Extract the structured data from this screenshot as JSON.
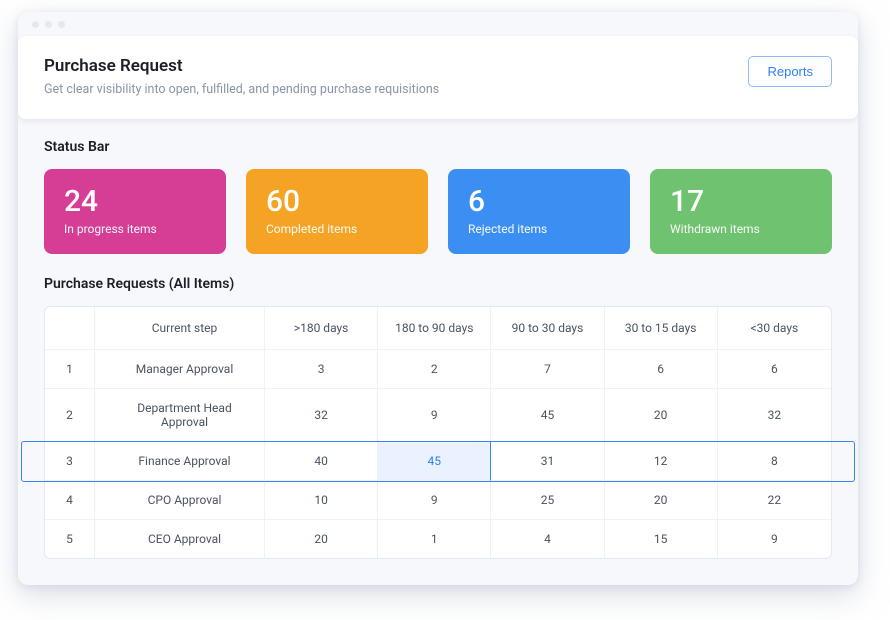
{
  "header": {
    "title": "Purchase Request",
    "subtitle": "Get clear visibility into open, fulfilled, and pending purchase requisitions",
    "reports_label": "Reports"
  },
  "status": {
    "heading": "Status Bar",
    "cards": [
      {
        "count": "24",
        "label": "In progress items",
        "bg": "#d63e96"
      },
      {
        "count": "60",
        "label": "Completed items",
        "bg": "#f4a324"
      },
      {
        "count": "6",
        "label": "Rejected items",
        "bg": "#3b8ff2"
      },
      {
        "count": "17",
        "label": "Withdrawn items",
        "bg": "#6fc26f"
      }
    ]
  },
  "table": {
    "heading": "Purchase Requests (All Items)",
    "columns": [
      "Current step",
      ">180 days",
      "180 to 90 days",
      "90 to 30 days",
      "30 to 15 days",
      "<30 days"
    ],
    "rows": [
      {
        "idx": "1",
        "step": "Manager Approval",
        "c1": "3",
        "c2": "2",
        "c3": "7",
        "c4": "6",
        "c5": "6"
      },
      {
        "idx": "2",
        "step": "Department Head Approval",
        "c1": "32",
        "c2": "9",
        "c3": "45",
        "c4": "20",
        "c5": "32"
      },
      {
        "idx": "3",
        "step": "Finance Approval",
        "c1": "40",
        "c2": "45",
        "c3": "31",
        "c4": "12",
        "c5": "8"
      },
      {
        "idx": "4",
        "step": "CPO Approval",
        "c1": "10",
        "c2": "9",
        "c3": "25",
        "c4": "20",
        "c5": "22"
      },
      {
        "idx": "5",
        "step": "CEO Approval",
        "c1": "20",
        "c2": "1",
        "c3": "4",
        "c4": "15",
        "c5": "9"
      }
    ],
    "highlight_row_index": 2,
    "highlight_cell_col": 1,
    "colors": {
      "row_border": "#3b82f6",
      "cell_highlight_bg": "#eaf2ff",
      "cell_highlight_text": "#2d7ff9",
      "table_border": "#e4e8ef",
      "table_inner_border": "#eef1f6",
      "text_primary": "#1a1f27",
      "text_secondary": "#8a94a5"
    }
  }
}
